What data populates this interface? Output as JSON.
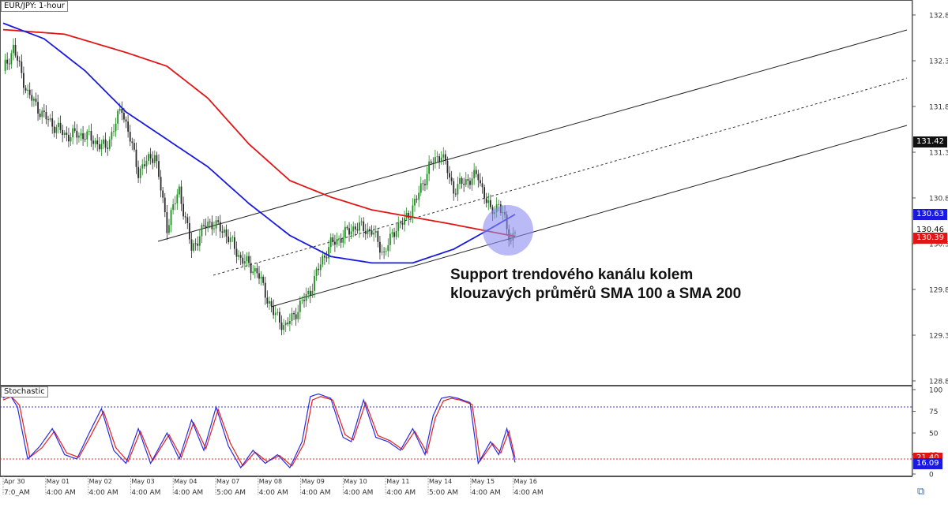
{
  "chart_title": "EUR/JPY: 1-hour",
  "indicator_title": "Stochastic",
  "annotation": {
    "line1": "Support trendového kanálu kolem",
    "line2": "klouzavých průměrů SMA 100 a SMA 200"
  },
  "colors": {
    "sma100": "#1a1adf",
    "sma200": "#e01515",
    "candle_up": "#1e8c1e",
    "candle_down": "#2b2b2b",
    "stoch_k": "#2a2adf",
    "stoch_d": "#e02020",
    "highlight": "#8c8cf0",
    "badge_blue": "#1a1adf",
    "badge_red": "#e01515",
    "badge_black": "#111111"
  },
  "chart_data": [
    {
      "type": "candlestick",
      "title": "EUR/JPY: 1-hour",
      "ylim": [
        128.81,
        132.81
      ],
      "y_ticks": [
        "132.81",
        "132.31",
        "131.81",
        "131.31",
        "130.81",
        "130.31",
        "129.81",
        "129.31",
        "128.81"
      ],
      "price_badges": {
        "last": "131.42",
        "sma100": "130.63",
        "price": "130.46",
        "sma200": "130.39"
      },
      "x_axis": {
        "dates": [
          "Apr 30",
          "May 01",
          "May 02",
          "May 03",
          "May 04",
          "May 07",
          "May 08",
          "May 09",
          "May 10",
          "May 11",
          "May 14",
          "May 15",
          "May 16"
        ],
        "times": [
          "7:0_AM",
          "4:00 AM",
          "4:00 AM",
          "4:00 AM",
          "4:00 AM",
          "5:00 AM",
          "4:00 AM",
          "4:00 AM",
          "4:00 AM",
          "4:00 AM",
          "5:00 AM",
          "4:00 AM",
          "4:00 AM"
        ]
      },
      "price_anchors": {
        "x_index": [
          0,
          5,
          12,
          20,
          30,
          40,
          50,
          58,
          66,
          74,
          80,
          86,
          92,
          100,
          108,
          116,
          124,
          132,
          138,
          144,
          150,
          156,
          160,
          166,
          172,
          180,
          186,
          192,
          196,
          202,
          208,
          214,
          220,
          226,
          232,
          238,
          242,
          248,
          250
        ],
        "close": [
          132.2,
          132.45,
          131.95,
          131.7,
          131.5,
          131.5,
          131.35,
          131.8,
          131.1,
          131.3,
          130.5,
          130.9,
          130.25,
          130.55,
          130.45,
          130.15,
          130.0,
          129.55,
          129.4,
          129.6,
          129.8,
          130.15,
          130.3,
          130.4,
          130.5,
          130.45,
          130.2,
          130.5,
          130.55,
          130.8,
          131.15,
          131.3,
          130.9,
          131.0,
          131.05,
          130.65,
          130.75,
          130.35,
          130.46
        ]
      },
      "sma100_anchors": {
        "x_index": [
          0,
          20,
          40,
          60,
          80,
          100,
          120,
          140,
          160,
          180,
          200,
          220,
          236,
          250
        ],
        "y": [
          132.72,
          132.55,
          132.2,
          131.75,
          131.45,
          131.15,
          130.75,
          130.4,
          130.17,
          130.1,
          130.1,
          130.25,
          130.45,
          130.63
        ]
      },
      "sma200_anchors": {
        "x_index": [
          0,
          30,
          60,
          80,
          100,
          120,
          140,
          160,
          180,
          200,
          220,
          236,
          250
        ],
        "y": [
          132.65,
          132.6,
          132.4,
          132.25,
          131.9,
          131.4,
          131.0,
          130.82,
          130.68,
          130.6,
          130.52,
          130.45,
          130.39
        ]
      },
      "series": [
        {
          "name": "SMA 100"
        },
        {
          "name": "SMA 200"
        }
      ]
    },
    {
      "type": "line",
      "title": "Stochastic",
      "ylim": [
        0,
        100
      ],
      "y_ticks": [
        "100",
        "75",
        "50",
        "25",
        "0"
      ],
      "levels": [
        80,
        20
      ],
      "badges": {
        "k": "16.09",
        "d": "21.40"
      },
      "k_anchors": {
        "x_index": [
          0,
          3,
          7,
          12,
          18,
          24,
          30,
          36,
          42,
          48,
          54,
          60,
          66,
          72,
          80,
          86,
          92,
          98,
          104,
          110,
          116,
          122,
          128,
          134,
          140,
          146,
          150,
          154,
          160,
          166,
          170,
          176,
          182,
          188,
          194,
          200,
          206,
          210,
          214,
          218,
          222,
          228,
          232,
          238,
          242,
          246,
          250
        ],
        "y": [
          90,
          95,
          80,
          20,
          35,
          55,
          25,
          20,
          50,
          78,
          30,
          15,
          55,
          15,
          50,
          20,
          65,
          30,
          80,
          35,
          10,
          30,
          15,
          25,
          10,
          40,
          92,
          95,
          90,
          45,
          40,
          88,
          45,
          40,
          30,
          55,
          25,
          70,
          90,
          92,
          90,
          85,
          15,
          40,
          25,
          55,
          16
        ]
      },
      "d_anchors": {
        "x_index": [
          0,
          4,
          8,
          13,
          19,
          25,
          31,
          37,
          43,
          49,
          55,
          61,
          67,
          73,
          81,
          87,
          93,
          99,
          105,
          111,
          117,
          123,
          129,
          135,
          141,
          147,
          151,
          155,
          161,
          167,
          171,
          177,
          183,
          189,
          195,
          201,
          207,
          211,
          215,
          219,
          223,
          229,
          233,
          239,
          243,
          247,
          250
        ],
        "y": [
          88,
          92,
          82,
          22,
          33,
          52,
          27,
          22,
          48,
          75,
          33,
          17,
          52,
          18,
          48,
          22,
          62,
          32,
          77,
          38,
          12,
          28,
          17,
          24,
          12,
          38,
          88,
          92,
          88,
          48,
          42,
          85,
          47,
          41,
          31,
          52,
          27,
          67,
          87,
          90,
          88,
          83,
          18,
          38,
          27,
          52,
          21.4
        ]
      }
    }
  ]
}
